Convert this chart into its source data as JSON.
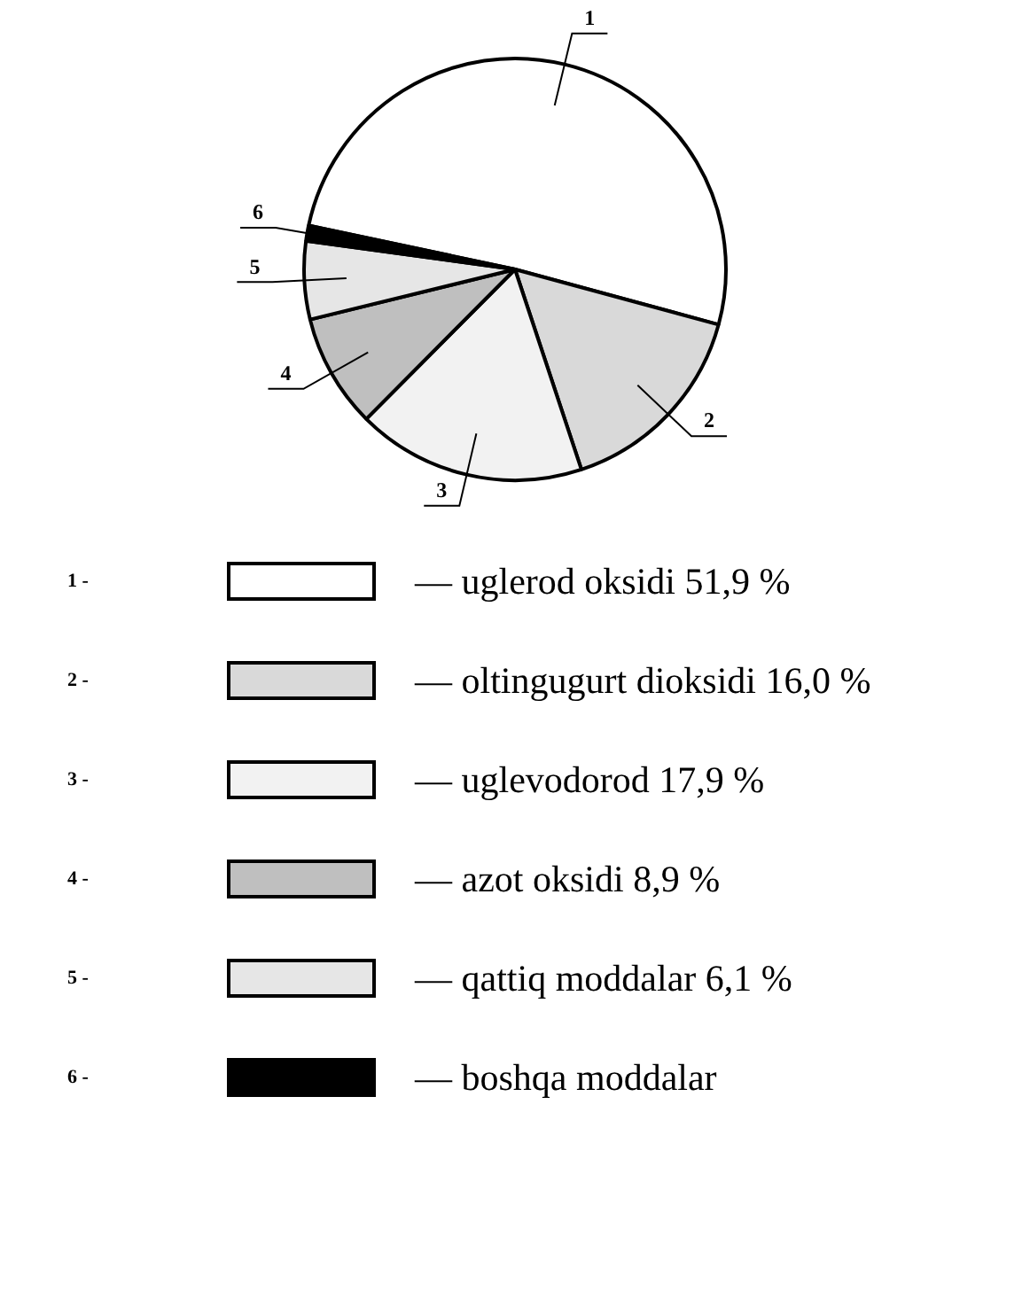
{
  "chart_data": {
    "type": "pie",
    "categories": [
      "— uglerod oksidi 51,9 %",
      "— oltingugurt dioksidi 16,0 %",
      "— uglevodorod 17,9 %",
      "— azot oksidi 8,9 %",
      "— qattiq moddalar 6,1 %",
      "— boshqa moddalar"
    ],
    "values": [
      51.9,
      16.0,
      17.9,
      8.9,
      6.1,
      1.2
    ],
    "legend": "bottom",
    "colors": [
      "#ffffff",
      "#d9d9d9",
      "#f2f2f2",
      "#bfbfbf",
      "#e6e6e6",
      "#000000"
    ],
    "annotations": [
      {
        "text": "1",
        "x": "— uglerod oksidi 51,9 %"
      },
      {
        "text": "2",
        "x": "— oltingugurt dioksidi 16,0 %"
      },
      {
        "text": "3",
        "x": "— uglevodorod 17,9 %"
      },
      {
        "text": "4",
        "x": "— azot oksidi 8,9 %"
      },
      {
        "text": "5",
        "x": "— qattiq moddalar 6,1 %"
      },
      {
        "text": "6",
        "x": "— boshqa moddalar"
      },
      "1 -",
      "2 -",
      "3 -",
      "4 -",
      "5 -",
      "6 -"
    ]
  }
}
